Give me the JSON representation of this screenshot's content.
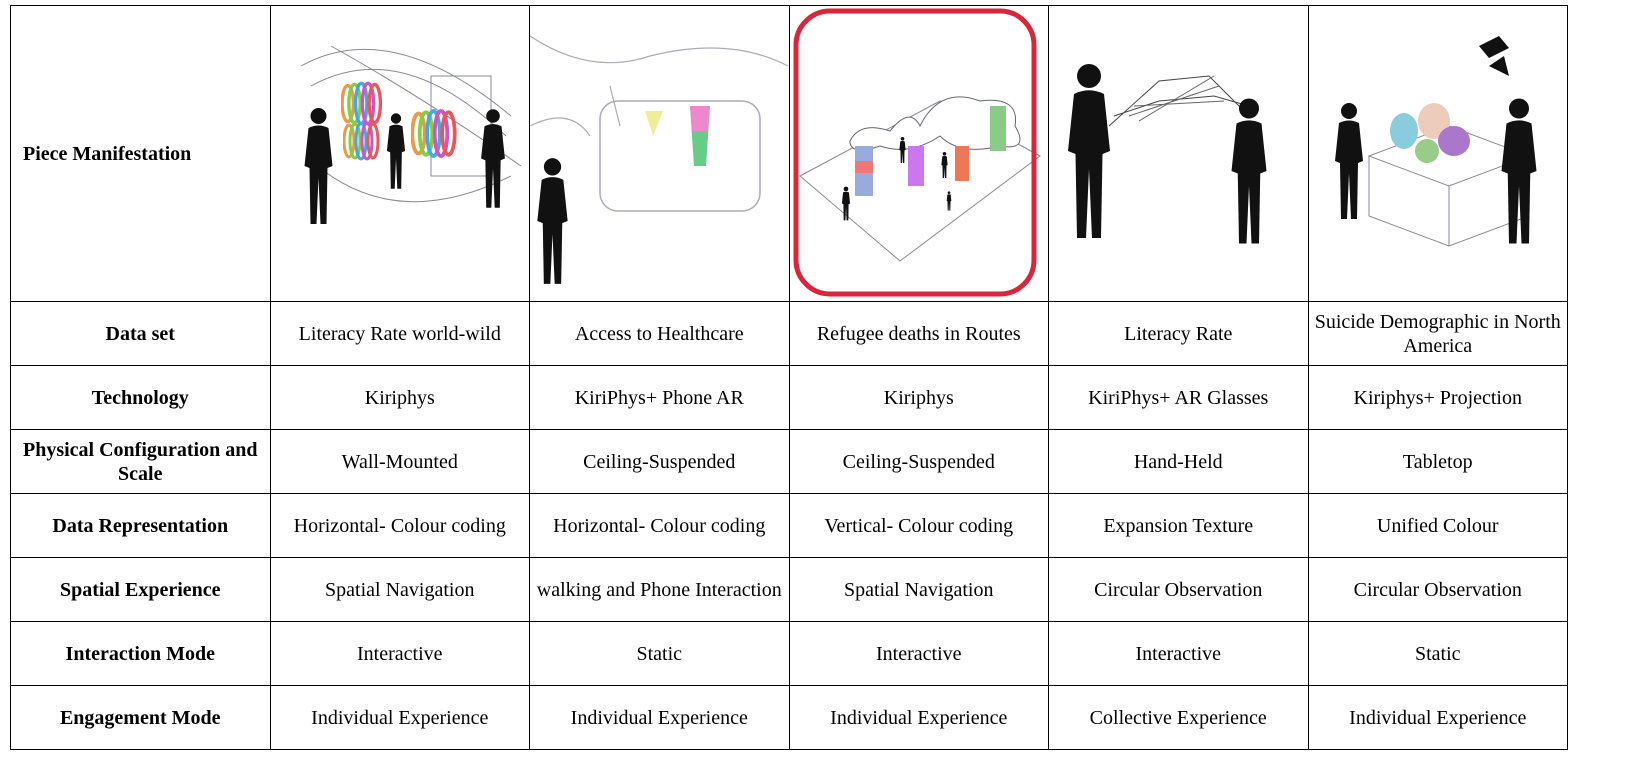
{
  "table": {
    "header_label": "Piece Manifestation",
    "rows": [
      [
        "Data set",
        "Literacy Rate world-wild",
        "Access to Healthcare",
        "Refugee deaths in Routes",
        "Literacy Rate",
        "Suicide Demographic in North America"
      ],
      [
        "Technology",
        "Kiriphys",
        "KiriPhys+ Phone AR",
        "Kiriphys",
        "KiriPhys+ AR Glasses",
        "Kiriphys+ Projection"
      ],
      [
        "Physical Configuration and Scale",
        "Wall-Mounted",
        "Ceiling-Suspended",
        "Ceiling-Suspended",
        "Hand-Held",
        "Tabletop"
      ],
      [
        "Data Representation",
        "Horizontal- Colour coding",
        "Horizontal- Colour coding",
        "Vertical- Colour coding",
        "Expansion Texture",
        "Unified Colour"
      ],
      [
        "Spatial Experience",
        "Spatial Navigation",
        "walking and Phone Interaction",
        "Spatial Navigation",
        "Circular Observation",
        "Circular Observation"
      ],
      [
        "Interaction Mode",
        "Interactive",
        "Static",
        "Interactive",
        "Interactive",
        "Static"
      ],
      [
        "Engagement Mode",
        "Individual Experience",
        "Individual Experience",
        "Individual Experience",
        "Collective Experience",
        "Individual Experience"
      ]
    ]
  }
}
